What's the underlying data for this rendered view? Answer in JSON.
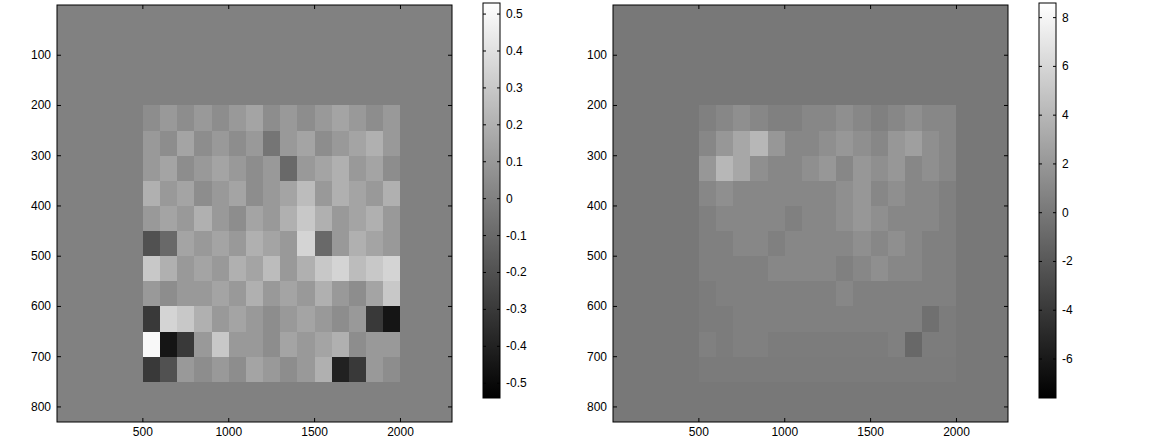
{
  "chart_data": [
    {
      "type": "heatmap",
      "color": "gray",
      "xlim": [
        0,
        2300
      ],
      "ylim": [
        830,
        0
      ],
      "xticks": [
        500,
        1000,
        1500,
        2000
      ],
      "yticks": [
        100,
        200,
        300,
        400,
        500,
        600,
        700,
        800
      ],
      "x_edges": [
        0,
        500,
        600,
        700,
        800,
        900,
        1000,
        1100,
        1200,
        1300,
        1400,
        1500,
        1600,
        1700,
        1800,
        1900,
        2000,
        2300
      ],
      "y_edges": [
        0,
        200,
        250,
        300,
        350,
        400,
        450,
        500,
        550,
        600,
        650,
        700,
        750,
        830
      ],
      "cells": [
        [
          0,
          0,
          0,
          0,
          0,
          0,
          0,
          0,
          0,
          0,
          0,
          0,
          0,
          0,
          0,
          0,
          0
        ],
        [
          0,
          0.05,
          0.1,
          0.05,
          0.1,
          0.05,
          0.1,
          0.15,
          0.05,
          0.1,
          0.05,
          0.1,
          0.15,
          0.1,
          0.05,
          0.1,
          0
        ],
        [
          0,
          0.1,
          0.05,
          0.15,
          0.05,
          0.1,
          0.05,
          0.1,
          -0.05,
          0.1,
          0.15,
          0.05,
          0.1,
          0.15,
          0.2,
          0.1,
          0
        ],
        [
          0,
          0.1,
          0.15,
          0.05,
          0.1,
          0.15,
          0.1,
          0.05,
          0.1,
          -0.1,
          0.1,
          0.15,
          0.2,
          0.1,
          0.15,
          0.05,
          0
        ],
        [
          0,
          0.2,
          0.1,
          0.15,
          0.05,
          0.1,
          0.15,
          0.05,
          0.1,
          0.15,
          0.25,
          0.1,
          0.2,
          0.15,
          0.1,
          0.2,
          0
        ],
        [
          0,
          0.1,
          0.15,
          0.1,
          0.2,
          0.1,
          0.05,
          0.15,
          0.1,
          0.2,
          0.3,
          0.2,
          0.1,
          0.15,
          0.2,
          0.1,
          0
        ],
        [
          0,
          -0.2,
          -0.1,
          0.15,
          0.1,
          0.15,
          0.1,
          0.2,
          0.15,
          0.1,
          0.35,
          -0.1,
          0.1,
          0.2,
          0.15,
          0.1,
          0
        ],
        [
          0,
          0.3,
          0.2,
          0.1,
          0.15,
          0.1,
          0.2,
          0.15,
          0.25,
          0.1,
          0.2,
          0.3,
          0.35,
          0.25,
          0.3,
          0.35,
          0
        ],
        [
          0,
          0.1,
          0.05,
          0.1,
          0.1,
          0.15,
          0.1,
          0.2,
          0.1,
          0.15,
          0.1,
          0.2,
          0.1,
          0.05,
          0.15,
          0.3,
          0
        ],
        [
          0,
          -0.3,
          0.35,
          0.3,
          0.2,
          0.1,
          0.15,
          0.1,
          0.05,
          0.1,
          0.15,
          0.1,
          0.05,
          0.1,
          -0.3,
          -0.45,
          0
        ],
        [
          0,
          0.5,
          -0.45,
          -0.3,
          0.1,
          0.3,
          0.1,
          0.1,
          0.05,
          0.15,
          0.1,
          0.15,
          0.2,
          0.05,
          0.1,
          0.1,
          0
        ],
        [
          0,
          -0.3,
          -0.2,
          0.1,
          0.05,
          0.1,
          0.05,
          0.15,
          0.1,
          0.05,
          0.1,
          0.2,
          -0.4,
          -0.3,
          0.1,
          0.05,
          0
        ],
        [
          0,
          0,
          0,
          0,
          0,
          0,
          0,
          0,
          0,
          0,
          0,
          0,
          0,
          0,
          0,
          0,
          0
        ]
      ],
      "colorbar": {
        "range": [
          -0.54,
          0.53
        ],
        "ticks": [
          -0.5,
          -0.4,
          -0.3,
          -0.2,
          -0.1,
          0,
          0.1,
          0.2,
          0.3,
          0.4,
          0.5
        ]
      }
    },
    {
      "type": "heatmap",
      "color": "gray",
      "xlim": [
        0,
        2300
      ],
      "ylim": [
        830,
        0
      ],
      "xticks": [
        500,
        1000,
        1500,
        2000
      ],
      "yticks": [
        100,
        200,
        300,
        400,
        500,
        600,
        700,
        800
      ],
      "x_edges": [
        0,
        500,
        600,
        700,
        800,
        900,
        1000,
        1100,
        1200,
        1300,
        1400,
        1500,
        1600,
        1700,
        1800,
        1900,
        2000,
        2300
      ],
      "y_edges": [
        0,
        200,
        250,
        300,
        350,
        400,
        450,
        500,
        550,
        600,
        650,
        700,
        750,
        830
      ],
      "cells": [
        [
          0,
          0,
          0,
          0,
          0,
          0,
          0,
          0,
          0,
          0,
          0,
          0,
          0,
          0,
          0,
          0,
          0
        ],
        [
          0,
          0.5,
          1,
          1.5,
          1,
          0.5,
          0.5,
          1,
          1,
          1.5,
          1,
          0.5,
          1,
          1.5,
          1,
          1,
          0
        ],
        [
          0,
          1,
          2,
          3,
          4,
          2,
          1,
          1,
          1.5,
          2,
          1.5,
          1,
          2,
          2.5,
          1.5,
          1,
          0
        ],
        [
          0,
          2,
          4,
          3,
          1.5,
          1,
          1,
          1.5,
          2,
          1,
          2,
          1.5,
          2,
          1,
          1.5,
          1,
          0
        ],
        [
          0,
          1,
          1.5,
          1,
          1,
          1,
          1,
          1,
          1,
          1.5,
          2,
          1,
          1.5,
          1,
          1,
          0.5,
          0
        ],
        [
          0,
          0.5,
          1,
          1,
          1,
          1,
          0.5,
          1,
          1,
          1.5,
          2,
          1.5,
          1,
          1,
          1,
          0.5,
          0
        ],
        [
          0,
          0.5,
          0.5,
          1,
          1,
          0.5,
          1,
          1,
          1,
          1,
          1.5,
          1,
          1.5,
          1,
          0.5,
          0.5,
          0
        ],
        [
          0,
          0.5,
          0.5,
          0.5,
          0.5,
          1,
          1,
          1,
          1,
          0.5,
          1,
          1.5,
          1,
          1,
          0.5,
          0.5,
          0
        ],
        [
          0,
          0.3,
          0.5,
          0.5,
          0.5,
          0.5,
          0.5,
          0.5,
          0.5,
          1,
          0.5,
          0.5,
          0.5,
          0.5,
          0.5,
          0.5,
          0
        ],
        [
          0,
          0.3,
          0.3,
          0.5,
          0.5,
          0.5,
          0.5,
          0.5,
          0.5,
          0.5,
          0.5,
          0.5,
          0.5,
          0.5,
          -0.5,
          0.3,
          0
        ],
        [
          0,
          0.5,
          0.3,
          0.5,
          0.5,
          0.3,
          0.3,
          0.3,
          0.3,
          0.3,
          0.3,
          0.3,
          0.5,
          -1,
          0.3,
          0.3,
          0
        ],
        [
          0,
          0.2,
          0.2,
          0.2,
          0.2,
          0.2,
          0.2,
          0.2,
          0.2,
          0.2,
          0.2,
          0.2,
          0.2,
          0.2,
          0.2,
          0.2,
          0
        ],
        [
          0,
          0,
          0,
          0,
          0,
          0,
          0,
          0,
          0,
          0,
          0,
          0,
          0,
          0,
          0,
          0,
          0
        ]
      ],
      "colorbar": {
        "range": [
          -7.6,
          8.6
        ],
        "ticks": [
          -6,
          -4,
          -2,
          0,
          2,
          4,
          6,
          8
        ]
      }
    }
  ]
}
